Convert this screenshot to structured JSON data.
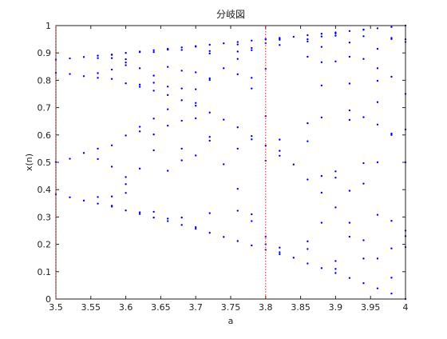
{
  "chart_data": {
    "type": "scatter",
    "title": "分岐図",
    "x_label": "a",
    "y_label": "x(n)",
    "xlim": [
      3.5,
      4
    ],
    "ylim": [
      0,
      1
    ],
    "xticks": [
      3.5,
      3.55,
      3.6,
      3.65,
      3.7,
      3.75,
      3.8,
      3.85,
      3.9,
      3.95,
      4
    ],
    "yticks": [
      0,
      0.1,
      0.2,
      0.3,
      0.4,
      0.5,
      0.6,
      0.7,
      0.8,
      0.9,
      1
    ],
    "vlines": [
      3.5,
      3.8
    ],
    "vline_color": "#d62728",
    "series": [
      {
        "color": "#0000ff",
        "x": [
          3.5,
          3.5,
          3.5,
          3.5,
          3.52,
          3.52,
          3.52,
          3.52,
          3.54,
          3.54,
          3.54,
          3.54,
          3.56,
          3.56,
          3.56,
          3.56,
          3.56,
          3.56,
          3.56,
          3.56,
          3.58,
          3.58,
          3.58,
          3.58,
          3.58,
          3.58,
          3.58,
          3.58,
          3.58,
          3.58,
          3.6,
          3.6,
          3.6,
          3.6,
          3.6,
          3.6,
          3.6,
          3.6,
          3.6,
          3.6,
          3.62,
          3.62,
          3.62,
          3.62,
          3.62,
          3.62,
          3.62,
          3.62,
          3.62,
          3.62,
          3.64,
          3.64,
          3.64,
          3.64,
          3.64,
          3.64,
          3.64,
          3.64,
          3.64,
          3.64,
          3.66,
          3.66,
          3.66,
          3.66,
          3.66,
          3.66,
          3.66,
          3.66,
          3.66,
          3.66,
          3.68,
          3.68,
          3.68,
          3.68,
          3.68,
          3.68,
          3.68,
          3.68,
          3.68,
          3.68,
          3.7,
          3.7,
          3.7,
          3.7,
          3.7,
          3.7,
          3.7,
          3.7,
          3.7,
          3.7,
          3.72,
          3.72,
          3.72,
          3.72,
          3.72,
          3.72,
          3.72,
          3.72,
          3.72,
          3.72,
          3.74,
          3.74,
          3.74,
          3.74,
          3.74,
          3.76,
          3.76,
          3.76,
          3.76,
          3.76,
          3.76,
          3.76,
          3.76,
          3.76,
          3.76,
          3.78,
          3.78,
          3.78,
          3.78,
          3.78,
          3.78,
          3.78,
          3.78,
          3.78,
          3.78,
          3.8,
          3.8,
          3.8,
          3.8,
          3.8,
          3.8,
          3.8,
          3.8,
          3.8,
          3.8,
          3.82,
          3.82,
          3.82,
          3.82,
          3.82,
          3.82,
          3.82,
          3.82,
          3.82,
          3.82,
          3.84,
          3.84,
          3.84,
          3.86,
          3.86,
          3.86,
          3.86,
          3.86,
          3.86,
          3.86,
          3.86,
          3.86,
          3.86,
          3.88,
          3.88,
          3.88,
          3.88,
          3.88,
          3.88,
          3.88,
          3.88,
          3.88,
          3.88,
          3.9,
          3.9,
          3.9,
          3.9,
          3.9,
          3.9,
          3.9,
          3.9,
          3.9,
          3.9,
          3.92,
          3.92,
          3.92,
          3.92,
          3.92,
          3.92,
          3.92,
          3.92,
          3.92,
          3.92,
          3.94,
          3.94,
          3.94,
          3.94,
          3.94,
          3.94,
          3.94,
          3.94,
          3.94,
          3.94,
          3.96,
          3.96,
          3.96,
          3.96,
          3.96,
          3.96,
          3.96,
          3.96,
          3.96,
          3.96,
          3.98,
          3.98,
          3.98,
          3.98,
          3.98,
          3.98,
          3.98,
          3.98,
          3.98,
          3.98,
          4,
          4,
          4,
          4,
          4,
          4,
          4,
          4,
          4,
          4
        ],
        "values": [
          0.875,
          0.383,
          0.827,
          0.501,
          0.88,
          0.372,
          0.823,
          0.513,
          0.885,
          0.36,
          0.815,
          0.534,
          0.89,
          0.349,
          0.809,
          0.55,
          0.881,
          0.373,
          0.826,
          0.512,
          0.893,
          0.341,
          0.805,
          0.562,
          0.881,
          0.375,
          0.839,
          0.484,
          0.894,
          0.338,
          0.9,
          0.324,
          0.789,
          0.598,
          0.865,
          0.42,
          0.877,
          0.388,
          0.855,
          0.446,
          0.905,
          0.311,
          0.776,
          0.63,
          0.844,
          0.477,
          0.903,
          0.317,
          0.784,
          0.613,
          0.91,
          0.298,
          0.762,
          0.66,
          0.817,
          0.544,
          0.903,
          0.319,
          0.791,
          0.602,
          0.915,
          0.285,
          0.746,
          0.694,
          0.777,
          0.634,
          0.849,
          0.469,
          0.912,
          0.294,
          0.92,
          0.271,
          0.727,
          0.55,
          0.911,
          0.298,
          0.77,
          0.652,
          0.835,
          0.507,
          0.925,
          0.257,
          0.707,
          0.767,
          0.661,
          0.829,
          0.525,
          0.923,
          0.263,
          0.717,
          0.93,
          0.242,
          0.682,
          0.807,
          0.579,
          0.907,
          0.314,
          0.801,
          0.593,
          0.898,
          0.935,
          0.227,
          0.656,
          0.844,
          0.493,
          0.94,
          0.212,
          0.628,
          0.878,
          0.403,
          0.905,
          0.323,
          0.822,
          0.55,
          0.931,
          0.945,
          0.196,
          0.596,
          0.91,
          0.31,
          0.809,
          0.584,
          0.918,
          0.285,
          0.77,
          0.95,
          0.18,
          0.561,
          0.936,
          0.228,
          0.669,
          0.842,
          0.506,
          0.95,
          0.2,
          0.955,
          0.164,
          0.524,
          0.953,
          0.171,
          0.542,
          0.948,
          0.188,
          0.583,
          0.929,
          0.959,
          0.151,
          0.492,
          0.965,
          0.13,
          0.437,
          0.95,
          0.183,
          0.577,
          0.942,
          0.211,
          0.643,
          0.886,
          0.97,
          0.113,
          0.389,
          0.922,
          0.279,
          0.781,
          0.664,
          0.866,
          0.45,
          0.96,
          0.975,
          0.095,
          0.335,
          0.869,
          0.444,
          0.963,
          0.139,
          0.467,
          0.971,
          0.11,
          0.98,
          0.077,
          0.279,
          0.788,
          0.655,
          0.886,
          0.396,
          0.938,
          0.228,
          0.69,
          0.985,
          0.058,
          0.215,
          0.665,
          0.878,
          0.422,
          0.961,
          0.148,
          0.497,
          0.985,
          0.99,
          0.039,
          0.148,
          0.5,
          0.72,
          0.798,
          0.638,
          0.915,
          0.308,
          0.844,
          0.995,
          0.02,
          0.078,
          0.286,
          0.813,
          0.605,
          0.951,
          0.185,
          0.6,
          0.955,
          1,
          0,
          0.5,
          0.75,
          0.25,
          0.95,
          0.19,
          0.62,
          0.94,
          0.23
        ]
      }
    ]
  }
}
